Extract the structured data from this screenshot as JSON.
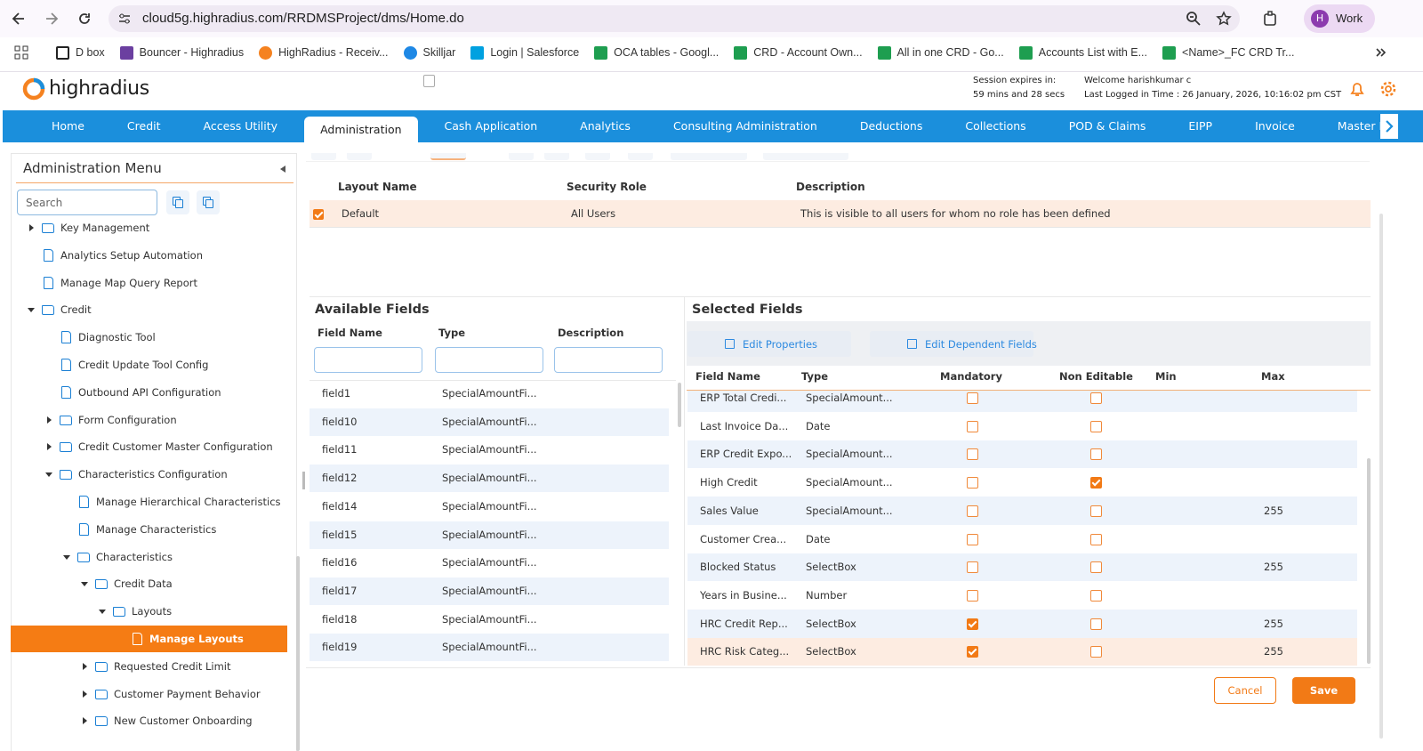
{
  "browser": {
    "url": "cloud5g.highradius.com/RRDMSProject/dms/Home.do",
    "profile_initial": "H",
    "profile": "Work",
    "bookmarks": [
      "D box",
      "Bouncer - Highradius",
      "HighRadius - Receiv...",
      "Skilljar",
      "Login | Salesforce",
      "OCA tables - Googl...",
      "CRD - Account Own...",
      "All in one CRD - Go...",
      "Accounts List with E...",
      "<Name>_FC CRD Tr..."
    ]
  },
  "header": {
    "logo": "highradius",
    "session_label": "Session expires in:",
    "session_time": "59 mins and 28 secs",
    "welcome": "Welcome harishkumar c",
    "last_logged": "Last Logged in Time : 26 January, 2026, 10:16:02 pm CST"
  },
  "nav": {
    "items": [
      "Home",
      "Credit",
      "Access Utility",
      "Administration",
      "Cash Application",
      "Analytics",
      "Consulting Administration",
      "Deductions",
      "Collections",
      "POD & Claims",
      "EIPP",
      "Invoice",
      "Master Da"
    ],
    "active": 3
  },
  "sidebar": {
    "title": "Administration Menu",
    "search_placeholder": "Search",
    "tree": [
      {
        "label": "Key Management",
        "depth": 0,
        "kind": "folder",
        "expanded": false
      },
      {
        "label": "Analytics Setup Automation",
        "depth": 0,
        "kind": "file"
      },
      {
        "label": "Manage Map Query Report",
        "depth": 0,
        "kind": "file"
      },
      {
        "label": "Credit",
        "depth": 0,
        "kind": "folder",
        "expanded": true
      },
      {
        "label": "Diagnostic Tool",
        "depth": 1,
        "kind": "file"
      },
      {
        "label": "Credit Update Tool Config",
        "depth": 1,
        "kind": "file"
      },
      {
        "label": "Outbound API Configuration",
        "depth": 1,
        "kind": "file"
      },
      {
        "label": "Form Configuration",
        "depth": 1,
        "kind": "folder",
        "expanded": false
      },
      {
        "label": "Credit Customer Master Configuration",
        "depth": 1,
        "kind": "folder",
        "expanded": false
      },
      {
        "label": "Characteristics Configuration",
        "depth": 1,
        "kind": "folder",
        "expanded": true
      },
      {
        "label": "Manage Hierarchical Characteristics",
        "depth": 2,
        "kind": "file"
      },
      {
        "label": "Manage Characteristics",
        "depth": 2,
        "kind": "file"
      },
      {
        "label": "Characteristics",
        "depth": 2,
        "kind": "folder",
        "expanded": true
      },
      {
        "label": "Credit Data",
        "depth": 3,
        "kind": "folder",
        "expanded": true
      },
      {
        "label": "Layouts",
        "depth": 4,
        "kind": "folder",
        "expanded": true
      },
      {
        "label": "Manage Layouts",
        "depth": 5,
        "kind": "file",
        "selected": true
      },
      {
        "label": "Requested Credit Limit",
        "depth": 3,
        "kind": "folder",
        "expanded": false
      },
      {
        "label": "Customer Payment Behavior",
        "depth": 3,
        "kind": "folder",
        "expanded": false
      },
      {
        "label": "New Customer Onboarding",
        "depth": 3,
        "kind": "folder",
        "expanded": false
      }
    ]
  },
  "layouts": {
    "columns": [
      "Layout Name",
      "Security Role",
      "Description"
    ],
    "rows": [
      {
        "checked": true,
        "cells": [
          "Default",
          "All Users",
          "This is visible to all users for whom no role has been defined"
        ]
      }
    ]
  },
  "available_fields": {
    "title": "Available Fields",
    "columns": [
      "Field Name",
      "Type",
      "Description"
    ],
    "rows": [
      {
        "name": "field1",
        "type": "SpecialAmountFi..."
      },
      {
        "name": "field10",
        "type": "SpecialAmountFi..."
      },
      {
        "name": "field11",
        "type": "SpecialAmountFi..."
      },
      {
        "name": "field12",
        "type": "SpecialAmountFi..."
      },
      {
        "name": "field14",
        "type": "SpecialAmountFi..."
      },
      {
        "name": "field15",
        "type": "SpecialAmountFi..."
      },
      {
        "name": "field16",
        "type": "SpecialAmountFi..."
      },
      {
        "name": "field17",
        "type": "SpecialAmountFi..."
      },
      {
        "name": "field18",
        "type": "SpecialAmountFi..."
      },
      {
        "name": "field19",
        "type": "SpecialAmountFi..."
      }
    ]
  },
  "selected_fields": {
    "title": "Selected Fields",
    "actions": [
      "Edit Properties",
      "Edit Dependent Fields"
    ],
    "columns": [
      "Field Name",
      "Type",
      "Mandatory",
      "Non Editable",
      "Min",
      "Max"
    ],
    "rows": [
      {
        "name": "ERP Total Credi...",
        "type": "SpecialAmount...",
        "mandatory": false,
        "non_editable": false
      },
      {
        "name": "Last Invoice Da...",
        "type": "Date",
        "mandatory": false,
        "non_editable": false
      },
      {
        "name": "ERP Credit Expo...",
        "type": "SpecialAmount...",
        "mandatory": false,
        "non_editable": false
      },
      {
        "name": "High Credit",
        "type": "SpecialAmount...",
        "mandatory": false,
        "non_editable": true
      },
      {
        "name": "Sales Value",
        "type": "SpecialAmount...",
        "mandatory": false,
        "non_editable": false,
        "max": 255
      },
      {
        "name": "Customer Crea...",
        "type": "Date",
        "mandatory": false,
        "non_editable": false
      },
      {
        "name": "Blocked Status",
        "type": "SelectBox",
        "mandatory": false,
        "non_editable": false,
        "max": 255
      },
      {
        "name": "Years in Busine...",
        "type": "Number",
        "mandatory": false,
        "non_editable": false
      },
      {
        "name": "HRC Credit Rep...",
        "type": "SelectBox",
        "mandatory": true,
        "non_editable": false,
        "max": 255
      },
      {
        "name": "HRC Risk Categ...",
        "type": "SelectBox",
        "mandatory": true,
        "non_editable": false,
        "max": 255,
        "highlighted": true
      }
    ]
  },
  "footer": {
    "cancel": "Cancel",
    "save": "Save"
  }
}
